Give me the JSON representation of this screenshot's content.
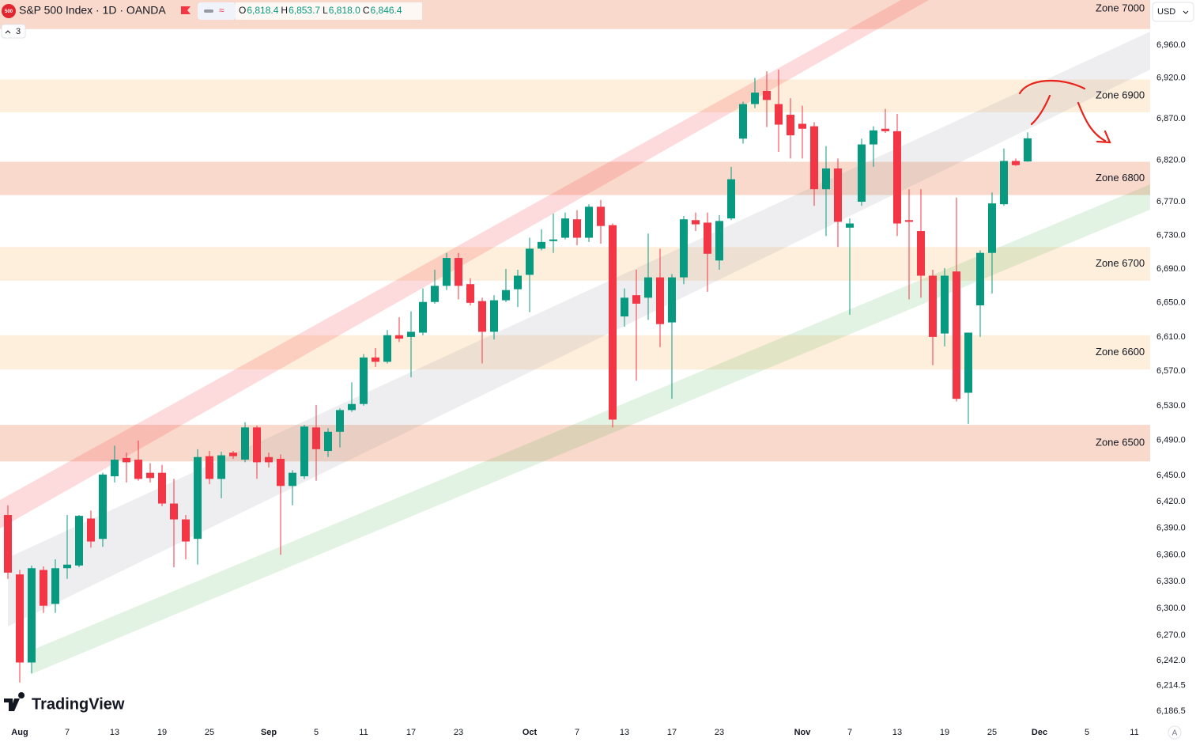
{
  "header": {
    "icon": "500",
    "symbol": "S&P 500 Index · 1D · OANDA",
    "ohlc": [
      {
        "key": "O",
        "value": "6,818.4"
      },
      {
        "key": "H",
        "value": "6,853.7"
      },
      {
        "key": "L",
        "value": "6,818.0"
      },
      {
        "key": "C",
        "value": "6,846.4"
      }
    ],
    "indicators": "3",
    "currency": "USD",
    "logo": "TradingView",
    "scale_mode": "A"
  },
  "chart_data": {
    "type": "candlestick",
    "log_scale": true,
    "up_color": "#089981",
    "down_color": "#f23645",
    "categories": [
      null,
      "Aug",
      null,
      null,
      null,
      "7",
      null,
      null,
      null,
      "13",
      null,
      null,
      null,
      "19",
      null,
      null,
      null,
      "25",
      null,
      null,
      null,
      null,
      "Sep",
      null,
      null,
      null,
      "5",
      null,
      null,
      null,
      "11",
      null,
      null,
      null,
      "17",
      null,
      null,
      null,
      "23",
      null,
      null,
      null,
      null,
      null,
      "Oct",
      null,
      null,
      null,
      "7",
      null,
      null,
      null,
      "13",
      null,
      null,
      null,
      "17",
      null,
      null,
      null,
      "23",
      null,
      null,
      null,
      null,
      null,
      null,
      "Nov",
      null,
      null,
      null,
      "7",
      null,
      null,
      null,
      "13",
      null,
      null,
      null,
      "19",
      null,
      null,
      null,
      "25",
      null,
      null,
      null,
      "Dec",
      null,
      null,
      null,
      "5",
      null,
      null,
      null,
      "11",
      null
    ],
    "open": [
      6405,
      6338,
      6240,
      6343,
      6305,
      6345,
      6348,
      6401,
      6378,
      6449,
      6470,
      6468,
      6453,
      6453,
      6418,
      6400,
      6378,
      6472,
      6446,
      6476,
      6468,
      6505,
      6471,
      6469,
      6438,
      6449,
      6505,
      6478,
      6500,
      6525,
      6532,
      6586,
      6581,
      6612,
      6610,
      6615,
      6651,
      6670,
      6703,
      6672,
      6652,
      6616,
      6653,
      6666,
      6683,
      6714,
      6723,
      6727,
      6749,
      6727,
      6764,
      6742,
      6634,
      6659,
      6656,
      6680,
      6627,
      6680,
      6748,
      6745,
      6700,
      6750,
      6846,
      6888,
      6904,
      6888,
      6875,
      6864,
      6861,
      6785,
      6810,
      6739,
      6770,
      6839,
      6858,
      6855,
      6748,
      6735,
      6682,
      6614,
      6687,
      6545,
      6647,
      6709,
      6767,
      6819,
      6818.4,
      null,
      null,
      null,
      null,
      null,
      null,
      null,
      null,
      null,
      null
    ],
    "high": [
      6416,
      6343,
      6348,
      6347,
      6355,
      6405,
      6405,
      6410,
      6453,
      6484,
      6476,
      6490,
      6464,
      6462,
      6446,
      6405,
      6480,
      6478,
      6477,
      6478,
      6511,
      6507,
      6476,
      6474,
      6456,
      6508,
      6531,
      6504,
      6527,
      6557,
      6590,
      6597,
      6618,
      6633,
      6640,
      6667,
      6689,
      6709,
      6709,
      6679,
      6656,
      6659,
      6690,
      6689,
      6727,
      6737,
      6756,
      6757,
      6760,
      6767,
      6772,
      6744,
      6667,
      6689,
      6732,
      6714,
      6684,
      6753,
      6757,
      6757,
      6754,
      6812,
      6891,
      6920,
      6928,
      6930,
      6895,
      6886,
      6866,
      6837,
      6822,
      6750,
      6846,
      6861,
      6882,
      6876,
      6785,
      6785,
      6689,
      6691,
      6775,
      6615,
      6712,
      6781,
      6834,
      6822,
      6853.7,
      null,
      null,
      null,
      null,
      null,
      null,
      null,
      null,
      null,
      null
    ],
    "low": [
      6333,
      6218,
      6228,
      6295,
      6295,
      6333,
      6346,
      6368,
      6369,
      6442,
      6442,
      6444,
      6442,
      6415,
      6346,
      6355,
      6349,
      6440,
      6424,
      6469,
      6465,
      6446,
      6459,
      6360,
      6416,
      6446,
      6444,
      6471,
      6482,
      6523,
      6530,
      6575,
      6579,
      6604,
      6563,
      6612,
      6649,
      6665,
      6654,
      6647,
      6579,
      6607,
      6651,
      6645,
      6639,
      6712,
      6709,
      6725,
      6718,
      6722,
      6720,
      6505,
      6622,
      6559,
      6630,
      6598,
      6538,
      6672,
      6735,
      6663,
      6689,
      6748,
      6840,
      6883,
      6860,
      6830,
      6822,
      6822,
      6765,
      6729,
      6716,
      6636,
      6765,
      6812,
      6853,
      6729,
      6654,
      6656,
      6577,
      6599,
      6535,
      6509,
      6610,
      6661,
      6765,
      6813,
      6818,
      null,
      null,
      null,
      null,
      null,
      null,
      null,
      null,
      null,
      null
    ],
    "close": [
      6340,
      6240,
      6345,
      6303,
      6345,
      6349,
      6404,
      6375,
      6451,
      6468,
      6465,
      6446,
      6447,
      6418,
      6400,
      6375,
      6471,
      6446,
      6473,
      6472,
      6505,
      6465,
      6465,
      6438,
      6453,
      6506,
      6480,
      6500,
      6525,
      6532,
      6586,
      6581,
      6612,
      6608,
      6616,
      6651,
      6670,
      6703,
      6670,
      6650,
      6616,
      6653,
      6665,
      6682,
      6714,
      6722,
      6725,
      6750,
      6727,
      6764,
      6741,
      6514,
      6656,
      6649,
      6680,
      6625,
      6680,
      6749,
      6743,
      6708,
      6747,
      6797,
      6888,
      6902,
      6893,
      6863,
      6850,
      6858,
      6785,
      6810,
      6746,
      6744,
      6839,
      6856,
      6855,
      6744,
      6746,
      6682,
      6610,
      6682,
      6538,
      6615,
      6709,
      6768,
      6819,
      6814,
      6846.4,
      null,
      null,
      null,
      null,
      null,
      null,
      null,
      null,
      null,
      null
    ],
    "ylim": [
      6177,
      7016
    ],
    "yticks": [
      {
        "value": 6186.5,
        "label": "6,186.5"
      },
      {
        "value": 6214.5,
        "label": "6,214.5"
      },
      {
        "value": 6242,
        "label": "6,242.0"
      },
      {
        "value": 6270,
        "label": "6,270.0"
      },
      {
        "value": 6300,
        "label": "6,300.0"
      },
      {
        "value": 6330,
        "label": "6,330.0"
      },
      {
        "value": 6360,
        "label": "6,360.0"
      },
      {
        "value": 6390,
        "label": "6,390.0"
      },
      {
        "value": 6420,
        "label": "6,420.0"
      },
      {
        "value": 6450,
        "label": "6,450.0"
      },
      {
        "value": 6490,
        "label": "6,490.0"
      },
      {
        "value": 6530,
        "label": "6,530.0"
      },
      {
        "value": 6570,
        "label": "6,570.0"
      },
      {
        "value": 6610,
        "label": "6,610.0"
      },
      {
        "value": 6650,
        "label": "6,650.0"
      },
      {
        "value": 6690,
        "label": "6,690.0"
      },
      {
        "value": 6730,
        "label": "6,730.0"
      },
      {
        "value": 6770,
        "label": "6,770.0"
      },
      {
        "value": 6820,
        "label": "6,820.0"
      },
      {
        "value": 6870,
        "label": "6,870.0"
      },
      {
        "value": 6920,
        "label": "6,920.0"
      },
      {
        "value": 6960,
        "label": "6,960.0"
      }
    ],
    "zones": [
      {
        "label": "Zone 7000",
        "range": [
          6980,
          7030
        ],
        "color": "#f9d9cb"
      },
      {
        "label": "Zone 6900",
        "range": [
          6878,
          6918
        ],
        "color": "#feefdc"
      },
      {
        "label": "Zone 6800",
        "range": [
          6778,
          6818
        ],
        "color": "#f9d9cb"
      },
      {
        "label": "Zone 6700",
        "range": [
          6676,
          6716
        ],
        "color": "#feefdc"
      },
      {
        "label": "Zone 6600",
        "range": [
          6572,
          6612
        ],
        "color": "#feefdc"
      },
      {
        "label": "Zone 6500",
        "range": [
          6466,
          6508
        ],
        "color": "#f9d9cb"
      }
    ]
  }
}
